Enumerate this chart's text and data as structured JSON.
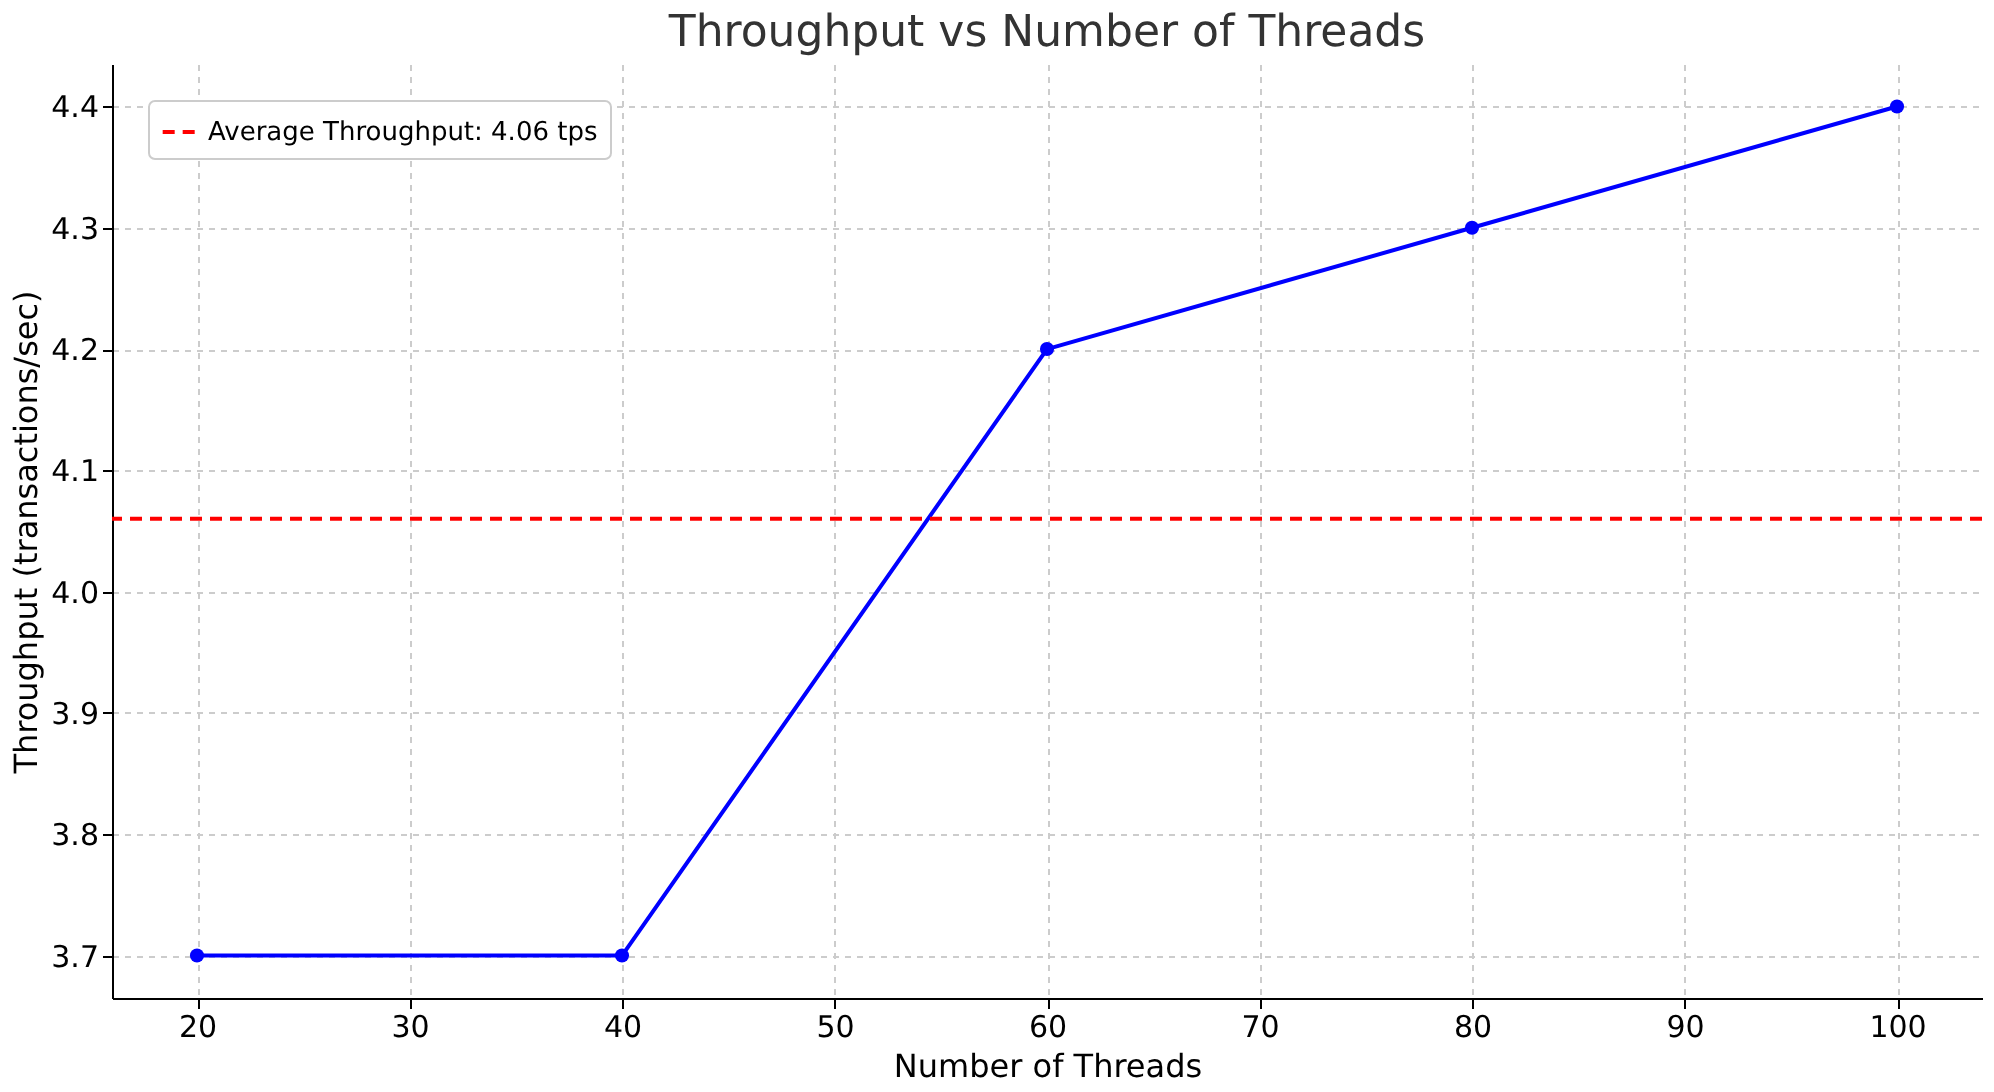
{
  "chart_data": {
    "type": "line",
    "title": "Throughput vs Number of Threads",
    "xlabel": "Number of Threads",
    "ylabel": "Throughput (transactions/sec)",
    "x": [
      20,
      40,
      60,
      80,
      100
    ],
    "series": [
      {
        "color": "#0000ff",
        "values": [
          3.7,
          3.7,
          4.2,
          4.3,
          4.4
        ]
      }
    ],
    "xlim": [
      16,
      104
    ],
    "xticks": [
      20,
      30,
      40,
      50,
      60,
      70,
      80,
      90,
      100
    ],
    "ylim": [
      3.665,
      4.435
    ],
    "yticks": [
      3.7,
      3.8,
      3.9,
      {
        "value": 4,
        "label": "4.0"
      },
      4.1,
      4.2,
      4.3,
      4.4
    ],
    "ref_lines": [
      {
        "axis": "y",
        "value": 4.06,
        "label": "Average Throughput: 4.06 tps",
        "color": "#ff0000",
        "line_style": "dashed"
      }
    ],
    "grid": true,
    "legend": "top left",
    "marker": "circle",
    "line_style": "solid"
  }
}
